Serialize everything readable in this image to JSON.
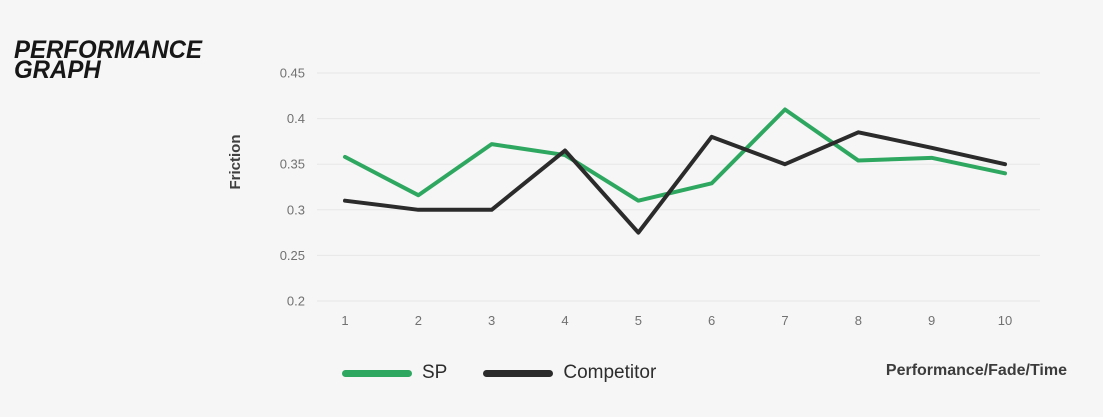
{
  "page": {
    "background": "#f6f6f6"
  },
  "title": {
    "line1": "PERFORMANCE",
    "line2": "GRAPH"
  },
  "chart_data": {
    "type": "line",
    "title": "PERFORMANCE GRAPH",
    "categories": [
      "1",
      "2",
      "3",
      "4",
      "5",
      "6",
      "7",
      "8",
      "9",
      "10"
    ],
    "series": [
      {
        "name": "SP",
        "color": "#2ea860",
        "values": [
          0.358,
          0.316,
          0.372,
          0.36,
          0.31,
          0.329,
          0.41,
          0.354,
          0.357,
          0.34
        ]
      },
      {
        "name": "Competitor",
        "color": "#2b2b2b",
        "values": [
          0.31,
          0.3,
          0.3,
          0.365,
          0.275,
          0.38,
          0.35,
          0.385,
          0.368,
          0.35
        ]
      }
    ],
    "xlabel": "Performance/Fade/Time",
    "ylabel": "Friction",
    "ylim": [
      0.2,
      0.45
    ],
    "y_ticks": [
      {
        "value": 0.45,
        "label": "0.45"
      },
      {
        "value": 0.4,
        "label": "0.4"
      },
      {
        "value": 0.35,
        "label": "0.35"
      },
      {
        "value": 0.3,
        "label": "0.3"
      },
      {
        "value": 0.25,
        "label": "0.25"
      },
      {
        "value": 0.2,
        "label": "0.2"
      }
    ],
    "grid": "horizontal",
    "legend_position": "bottom-left",
    "line_width": 4
  }
}
